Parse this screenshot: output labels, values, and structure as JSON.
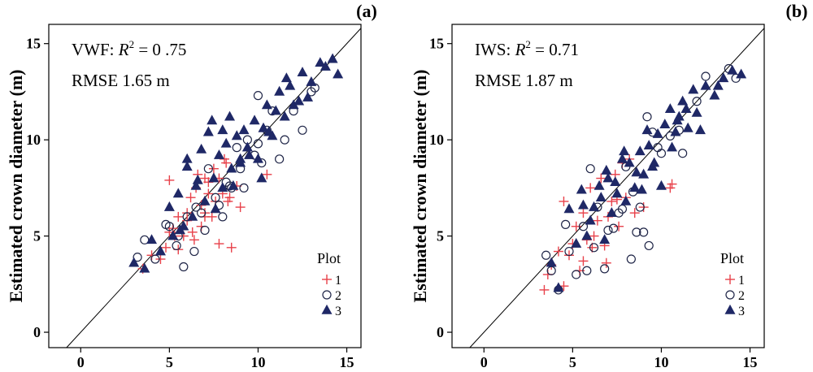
{
  "chart_data": [
    {
      "type": "scatter",
      "panel_label": "(a)",
      "method": "VWF",
      "r2_value": "= 0 .75",
      "rmse_text": "RMSE 1.65 m",
      "ylabel": "Estimated crown diameter (m)",
      "xlim": [
        -1.8,
        15.8
      ],
      "ylim": [
        -0.8,
        16.0
      ],
      "xticks": [
        0,
        5,
        10,
        15
      ],
      "yticks": [
        0,
        5,
        10,
        15
      ],
      "reference_line": "1:1",
      "legend": {
        "title": "Plot",
        "entries": [
          "1",
          "2",
          "3"
        ]
      },
      "series": [
        {
          "name": "1",
          "marker": "plus",
          "color": "#e8414a",
          "x": [
            3.5,
            4.0,
            4.5,
            4.8,
            5.0,
            5.2,
            5.5,
            5.5,
            5.8,
            6.0,
            6.2,
            6.3,
            6.5,
            6.8,
            7.0,
            7.0,
            7.2,
            7.4,
            7.5,
            7.6,
            7.8,
            8.0,
            8.1,
            8.2,
            8.3,
            8.5,
            8.8,
            9.0,
            7.2,
            6.8,
            6.0,
            5.0,
            7.8,
            8.4,
            6.6,
            10.5,
            5.3,
            7.0,
            6.4
          ],
          "y": [
            3.3,
            4.0,
            3.8,
            4.4,
            5.2,
            5.4,
            6.0,
            4.3,
            5.0,
            5.8,
            7.0,
            5.2,
            7.5,
            6.6,
            8.0,
            6.2,
            7.8,
            6.0,
            8.5,
            6.8,
            8.0,
            7.2,
            9.0,
            8.8,
            6.8,
            4.4,
            7.6,
            6.5,
            7.2,
            5.5,
            6.2,
            7.9,
            4.6,
            7.0,
            8.2,
            8.2,
            5.0,
            6.0,
            4.8
          ]
        },
        {
          "name": "2",
          "marker": "circle",
          "color": "#1f2547",
          "x": [
            3.2,
            3.6,
            4.2,
            4.8,
            5.0,
            5.4,
            5.8,
            6.0,
            6.4,
            6.8,
            7.0,
            7.2,
            7.6,
            8.0,
            8.2,
            8.5,
            8.8,
            9.0,
            9.4,
            9.8,
            10.0,
            10.2,
            10.5,
            10.8,
            11.2,
            11.5,
            12.0,
            12.5,
            13.0,
            13.2,
            5.5,
            6.5,
            7.8,
            9.2,
            10.0,
            8.4
          ],
          "y": [
            3.9,
            4.8,
            3.8,
            5.6,
            5.5,
            4.5,
            3.4,
            6.0,
            4.2,
            6.2,
            5.3,
            8.5,
            7.0,
            6.0,
            7.8,
            7.5,
            9.6,
            8.5,
            10.0,
            9.2,
            12.3,
            8.8,
            10.5,
            11.5,
            9.0,
            10.0,
            11.5,
            10.5,
            12.5,
            12.7,
            5.0,
            6.5,
            6.6,
            7.5,
            9.8,
            7.6
          ]
        },
        {
          "name": "3",
          "marker": "triangle",
          "color": "#1f2866",
          "x": [
            3.0,
            3.6,
            4.0,
            4.5,
            5.0,
            5.2,
            5.5,
            5.8,
            6.0,
            6.3,
            6.5,
            6.8,
            7.0,
            7.2,
            7.5,
            7.8,
            8.0,
            8.2,
            8.5,
            8.8,
            9.0,
            9.2,
            9.5,
            9.8,
            10.0,
            10.3,
            10.5,
            10.8,
            11.0,
            11.2,
            11.5,
            11.8,
            12.0,
            12.5,
            12.8,
            13.0,
            13.5,
            13.8,
            14.2,
            14.5,
            6.0,
            7.4,
            8.6,
            9.4,
            10.2,
            11.6,
            7.6,
            8.0,
            9.0,
            5.6,
            6.6,
            12.3,
            8.4,
            10.6
          ],
          "y": [
            3.6,
            3.3,
            4.8,
            4.2,
            6.5,
            5.0,
            7.2,
            5.5,
            9.0,
            6.0,
            7.6,
            9.5,
            6.8,
            10.4,
            8.0,
            9.2,
            7.5,
            9.8,
            8.5,
            10.2,
            8.8,
            10.5,
            9.2,
            11.0,
            9.0,
            10.6,
            11.8,
            10.2,
            11.5,
            12.5,
            11.2,
            12.8,
            11.8,
            13.5,
            12.2,
            13.0,
            14.0,
            13.8,
            14.2,
            13.4,
            8.6,
            11.0,
            7.6,
            9.6,
            8.0,
            13.2,
            6.4,
            10.5,
            9.0,
            5.3,
            7.9,
            12.0,
            11.2,
            10.4
          ]
        }
      ]
    },
    {
      "type": "scatter",
      "panel_label": "(b)",
      "method": "IWS",
      "r2_value": "= 0.71",
      "rmse_text": "RMSE 1.87 m",
      "ylabel": "Estimated crown diameter (m)",
      "xlim": [
        -1.8,
        15.8
      ],
      "ylim": [
        -0.8,
        16.0
      ],
      "xticks": [
        0,
        5,
        10,
        15
      ],
      "yticks": [
        0,
        5,
        10,
        15
      ],
      "reference_line": "1:1",
      "legend": {
        "title": "Plot",
        "entries": [
          "1",
          "2",
          "3"
        ]
      },
      "series": [
        {
          "name": "1",
          "marker": "plus",
          "color": "#e8414a",
          "x": [
            3.4,
            3.8,
            4.2,
            4.5,
            4.8,
            5.0,
            5.2,
            5.4,
            5.6,
            5.8,
            6.0,
            6.2,
            6.4,
            6.6,
            6.8,
            7.0,
            7.2,
            7.4,
            7.6,
            7.8,
            8.0,
            8.2,
            8.5,
            9.0,
            10.5,
            10.6,
            4.5,
            5.6,
            6.9,
            7.5,
            3.6,
            6.1
          ],
          "y": [
            2.2,
            3.5,
            4.2,
            6.8,
            4.0,
            4.6,
            5.5,
            3.2,
            6.2,
            4.8,
            7.5,
            5.0,
            5.8,
            8.0,
            4.5,
            6.0,
            6.8,
            8.2,
            5.5,
            8.8,
            7.0,
            9.0,
            6.2,
            6.5,
            7.5,
            7.7,
            2.4,
            3.7,
            3.6,
            6.9,
            3.0,
            4.4
          ]
        },
        {
          "name": "2",
          "marker": "circle",
          "color": "#1f2547",
          "x": [
            3.5,
            3.8,
            4.2,
            4.8,
            5.2,
            5.6,
            5.8,
            6.0,
            6.4,
            6.8,
            7.0,
            7.3,
            7.6,
            8.0,
            8.3,
            8.6,
            8.8,
            9.0,
            9.2,
            9.5,
            9.8,
            10.0,
            10.5,
            11.0,
            11.2,
            12.0,
            12.5,
            13.8,
            14.2,
            6.2,
            7.8,
            8.4,
            9.3,
            4.6
          ],
          "y": [
            4.0,
            3.2,
            2.2,
            4.2,
            3.0,
            5.5,
            3.2,
            8.5,
            6.5,
            3.3,
            5.3,
            5.4,
            6.2,
            8.6,
            3.8,
            5.2,
            6.5,
            5.2,
            11.2,
            10.4,
            9.6,
            9.3,
            10.2,
            10.5,
            9.3,
            12.0,
            13.3,
            13.7,
            13.2,
            4.4,
            6.4,
            7.3,
            4.5,
            5.6
          ]
        },
        {
          "name": "3",
          "marker": "triangle",
          "color": "#1f2866",
          "x": [
            3.8,
            4.2,
            4.8,
            5.2,
            5.5,
            5.8,
            6.0,
            6.2,
            6.5,
            6.8,
            7.0,
            7.2,
            7.5,
            7.8,
            8.0,
            8.2,
            8.5,
            8.8,
            9.0,
            9.2,
            9.5,
            9.8,
            10.0,
            10.2,
            10.5,
            10.8,
            11.0,
            11.2,
            11.5,
            11.8,
            12.0,
            12.5,
            13.0,
            13.5,
            14.0,
            14.5,
            6.6,
            7.4,
            8.6,
            9.6,
            10.6,
            12.2,
            5.6,
            6.9,
            7.9,
            8.9,
            11.4,
            9.3,
            10.9,
            13.2
          ],
          "y": [
            3.6,
            2.3,
            6.4,
            4.6,
            7.4,
            5.0,
            5.8,
            6.5,
            7.6,
            4.8,
            8.0,
            6.2,
            7.2,
            9.0,
            6.8,
            8.8,
            7.5,
            9.4,
            8.2,
            10.5,
            8.6,
            10.3,
            7.6,
            10.8,
            11.6,
            10.4,
            11.2,
            12.0,
            10.6,
            12.6,
            11.4,
            12.8,
            12.3,
            13.2,
            13.6,
            13.4,
            7.0,
            7.8,
            8.3,
            8.8,
            9.6,
            10.5,
            6.6,
            8.4,
            9.4,
            7.4,
            11.6,
            9.7,
            11.0,
            12.8
          ]
        }
      ]
    }
  ]
}
